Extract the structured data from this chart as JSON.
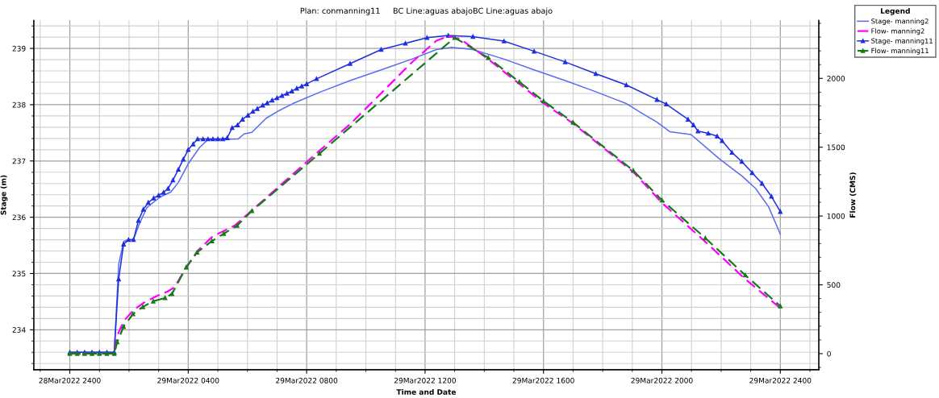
{
  "chart_data": {
    "type": "line",
    "title": "Plan: conmanning11     BC Line:aguas abajoBC Line:aguas abajo",
    "xlabel": "Time and Date",
    "ylabel": "Stage (m)",
    "y2label": "Flow (CMS)",
    "legend_title": "Legend",
    "legend": "right",
    "grid": true,
    "xlim": [
      "2022-03-28T22:47",
      "2022-03-30T01:18"
    ],
    "xticks": [
      {
        "value": "2022-03-28T24:00",
        "label": "28Mar2022 2400"
      },
      {
        "value": "2022-03-29T04:00",
        "label": "29Mar2022 0400"
      },
      {
        "value": "2022-03-29T08:00",
        "label": "29Mar2022 0800"
      },
      {
        "value": "2022-03-29T12:00",
        "label": "29Mar2022 1200"
      },
      {
        "value": "2022-03-29T16:00",
        "label": "29Mar2022 1600"
      },
      {
        "value": "2022-03-29T20:00",
        "label": "29Mar2022 2000"
      },
      {
        "value": "2022-03-29T24:00",
        "label": "29Mar2022 2400"
      }
    ],
    "ylim": [
      233.29,
      239.5
    ],
    "yticks": [
      234,
      235,
      236,
      237,
      238,
      239
    ],
    "y2lim": [
      -117,
      2422
    ],
    "y2ticks": [
      0,
      500,
      1000,
      1500,
      2000
    ],
    "series": [
      {
        "name": "Stage- manning2",
        "color": "#5a6cf0",
        "marker": "none",
        "line_style": "solid",
        "x": [
          "2022-03-29T00:00",
          "2022-03-29T01:30",
          "2022-03-29T01:39",
          "2022-03-29T01:49",
          "2022-03-29T01:59",
          "2022-03-29T02:09",
          "2022-03-29T02:20",
          "2022-03-29T02:36",
          "2022-03-29T03:03",
          "2022-03-29T03:25",
          "2022-03-29T03:40",
          "2022-03-29T04:00",
          "2022-03-29T04:23",
          "2022-03-29T04:40",
          "2022-03-29T05:41",
          "2022-03-29T05:53",
          "2022-03-29T06:09",
          "2022-03-29T06:38",
          "2022-03-29T07:05",
          "2022-03-29T07:32",
          "2022-03-29T08:26",
          "2022-03-29T09:28",
          "2022-03-29T10:31",
          "2022-03-29T11:33",
          "2022-03-29T12:23",
          "2022-03-29T12:54",
          "2022-03-29T13:37",
          "2022-03-29T14:40",
          "2022-03-29T15:41",
          "2022-03-29T16:44",
          "2022-03-29T17:46",
          "2022-03-29T18:48",
          "2022-03-29T19:19",
          "2022-03-29T19:50",
          "2022-03-29T20:16",
          "2022-03-29T20:59",
          "2022-03-29T21:55",
          "2022-03-29T22:44",
          "2022-03-29T23:10",
          "2022-03-29T23:36",
          "2022-03-30T00:00"
        ],
        "values": [
          233.6,
          233.6,
          235.16,
          235.57,
          235.6,
          235.6,
          235.86,
          236.17,
          236.36,
          236.45,
          236.62,
          236.95,
          237.24,
          237.38,
          237.39,
          237.48,
          237.51,
          237.76,
          237.9,
          238.02,
          238.22,
          238.43,
          238.62,
          238.81,
          238.98,
          239.02,
          238.98,
          238.81,
          238.62,
          238.43,
          238.23,
          238.02,
          237.85,
          237.69,
          237.52,
          237.47,
          237.05,
          236.72,
          236.51,
          236.19,
          235.7
        ]
      },
      {
        "name": "Flow- manning2",
        "color": "#ff00ff",
        "axis": "y2",
        "marker": "none",
        "line_style": "dashed",
        "x": [
          "2022-03-29T00:00",
          "2022-03-29T01:30",
          "2022-03-29T01:36",
          "2022-03-29T01:50",
          "2022-03-29T02:09",
          "2022-03-29T02:30",
          "2022-03-29T02:57",
          "2022-03-29T03:19",
          "2022-03-29T03:32",
          "2022-03-29T03:56",
          "2022-03-29T04:21",
          "2022-03-29T04:50",
          "2022-03-29T05:34",
          "2022-03-29T06:11",
          "2022-03-29T08:20",
          "2022-03-29T09:28",
          "2022-03-29T10:31",
          "2022-03-29T11:33",
          "2022-03-29T12:23",
          "2022-03-29T12:47",
          "2022-03-29T13:12",
          "2022-03-29T14:08",
          "2022-03-29T15:11",
          "2022-03-29T16:00",
          "2022-03-29T17:00",
          "2022-03-29T19:02",
          "2022-03-29T20:00",
          "2022-03-29T21:28",
          "2022-03-29T22:49",
          "2022-03-30T00:00"
        ],
        "values": [
          0,
          0,
          132,
          240,
          317,
          370,
          420,
          453,
          482,
          628,
          755,
          853,
          930,
          1047,
          1456,
          1667,
          1892,
          2116,
          2274,
          2307,
          2285,
          2140,
          1960,
          1820,
          1672,
          1320,
          1096,
          813,
          541,
          330
        ]
      },
      {
        "name": "Stage- manning11",
        "color": "#1f2fe0",
        "marker": "triangle",
        "line_style": "solid",
        "x": [
          "2022-03-29T00:00",
          "2022-03-29T00:15",
          "2022-03-29T00:30",
          "2022-03-29T00:45",
          "2022-03-29T01:00",
          "2022-03-29T01:15",
          "2022-03-29T01:30",
          "2022-03-29T01:39",
          "2022-03-29T01:49",
          "2022-03-29T01:59",
          "2022-03-29T02:09",
          "2022-03-29T02:19",
          "2022-03-29T02:29",
          "2022-03-29T02:39",
          "2022-03-29T02:50",
          "2022-03-29T03:00",
          "2022-03-29T03:10",
          "2022-03-29T03:19",
          "2022-03-29T03:29",
          "2022-03-29T03:40",
          "2022-03-29T03:50",
          "2022-03-29T04:00",
          "2022-03-29T04:10",
          "2022-03-29T04:19",
          "2022-03-29T04:30",
          "2022-03-29T04:40",
          "2022-03-29T04:50",
          "2022-03-29T05:00",
          "2022-03-29T05:10",
          "2022-03-29T05:19",
          "2022-03-29T05:29",
          "2022-03-29T05:40",
          "2022-03-29T05:50",
          "2022-03-29T06:01",
          "2022-03-29T06:11",
          "2022-03-29T06:20",
          "2022-03-29T06:31",
          "2022-03-29T06:40",
          "2022-03-29T06:50",
          "2022-03-29T07:00",
          "2022-03-29T07:10",
          "2022-03-29T07:20",
          "2022-03-29T07:30",
          "2022-03-29T07:40",
          "2022-03-29T07:50",
          "2022-03-29T08:00",
          "2022-03-29T08:20",
          "2022-03-29T09:28",
          "2022-03-29T10:31",
          "2022-03-29T11:20",
          "2022-03-29T12:04",
          "2022-03-29T12:47",
          "2022-03-29T13:37",
          "2022-03-29T14:40",
          "2022-03-29T15:41",
          "2022-03-29T16:44",
          "2022-03-29T17:46",
          "2022-03-29T18:48",
          "2022-03-29T19:50",
          "2022-03-29T20:09",
          "2022-03-29T20:53",
          "2022-03-29T21:04",
          "2022-03-29T21:13",
          "2022-03-29T21:34",
          "2022-03-29T21:52",
          "2022-03-29T22:02",
          "2022-03-29T22:22",
          "2022-03-29T22:42",
          "2022-03-29T23:03",
          "2022-03-29T23:23",
          "2022-03-29T23:42",
          "2022-03-30T00:00"
        ],
        "values": [
          233.6,
          233.6,
          233.6,
          233.6,
          233.6,
          233.6,
          233.6,
          234.9,
          235.52,
          235.6,
          235.6,
          235.94,
          236.14,
          236.26,
          236.34,
          236.39,
          236.44,
          236.51,
          236.66,
          236.85,
          237.03,
          237.2,
          237.3,
          237.39,
          237.39,
          237.39,
          237.39,
          237.39,
          237.39,
          237.41,
          237.59,
          237.64,
          237.74,
          237.81,
          237.88,
          237.93,
          237.99,
          238.03,
          238.08,
          238.12,
          238.16,
          238.2,
          238.24,
          238.29,
          238.33,
          238.37,
          238.46,
          238.73,
          238.98,
          239.09,
          239.19,
          239.23,
          239.21,
          239.13,
          238.95,
          238.76,
          238.55,
          238.35,
          238.09,
          238.01,
          237.74,
          237.64,
          237.53,
          237.49,
          237.44,
          237.36,
          237.15,
          236.99,
          236.79,
          236.6,
          236.37,
          236.1
        ]
      },
      {
        "name": "Flow- manning11",
        "color": "#1a7a1a",
        "axis": "y2",
        "marker": "triangle",
        "line_style": "dashed",
        "x": [
          "2022-03-29T00:00",
          "2022-03-29T00:15",
          "2022-03-29T00:30",
          "2022-03-29T00:45",
          "2022-03-29T01:00",
          "2022-03-29T01:15",
          "2022-03-29T01:30",
          "2022-03-29T01:36",
          "2022-03-29T01:49",
          "2022-03-29T02:08",
          "2022-03-29T02:28",
          "2022-03-29T02:49",
          "2022-03-29T03:13",
          "2022-03-29T03:27",
          "2022-03-29T03:56",
          "2022-03-29T04:18",
          "2022-03-29T04:48",
          "2022-03-29T05:12",
          "2022-03-29T05:39",
          "2022-03-29T06:09",
          "2022-03-29T08:26",
          "2022-03-29T13:00",
          "2022-03-29T14:08",
          "2022-03-29T15:11",
          "2022-03-29T16:00",
          "2022-03-29T17:00",
          "2022-03-29T19:02",
          "2022-03-29T20:00",
          "2022-03-29T21:28",
          "2022-03-29T22:49",
          "2022-03-30T00:00"
        ],
        "values": [
          0,
          0,
          0,
          0,
          0,
          0,
          0,
          84,
          196,
          288,
          340,
          381,
          405,
          434,
          628,
          736,
          818,
          872,
          930,
          1037,
          1454,
          2296,
          2150,
          1975,
          1835,
          1680,
          1330,
          1115,
          840,
          570,
          345
        ]
      }
    ]
  }
}
